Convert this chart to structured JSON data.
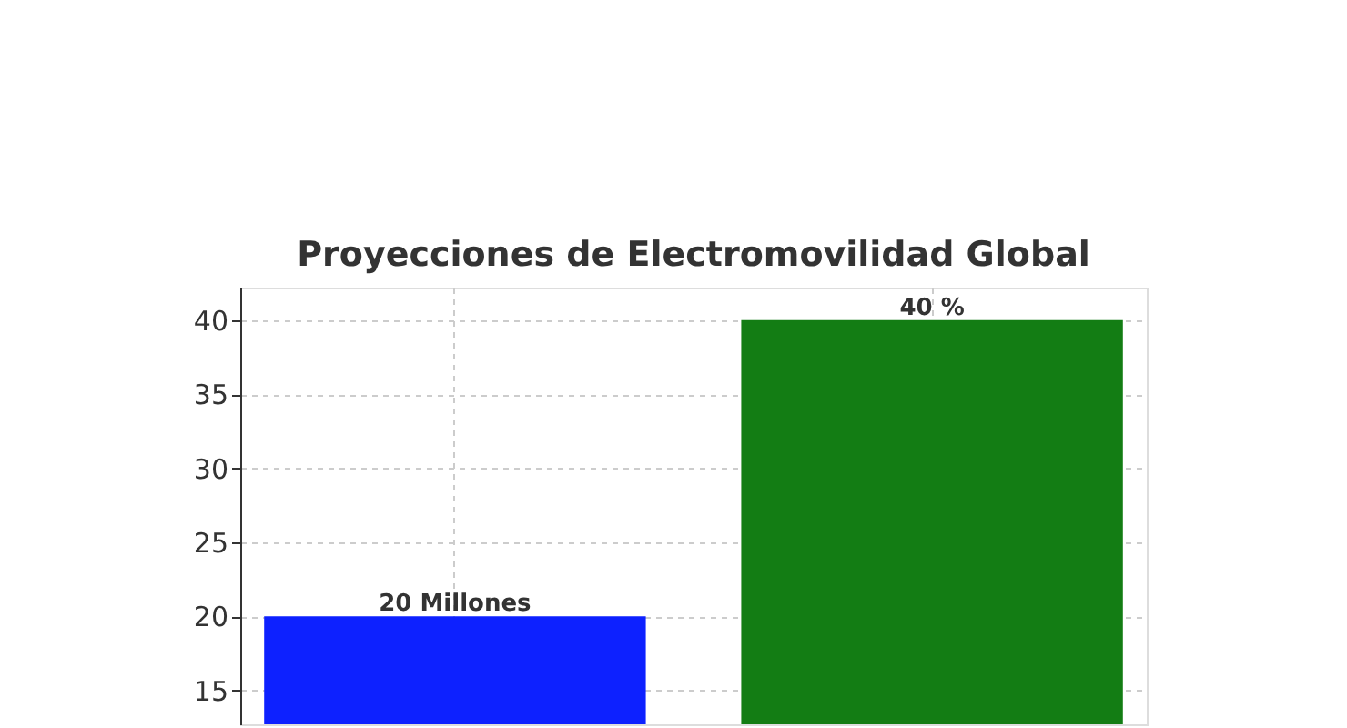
{
  "chart_data": {
    "type": "bar",
    "title": "Proyecciones de Electromovilidad Global",
    "categories": [
      null,
      null
    ],
    "values": [
      20,
      40
    ],
    "colors": [
      "#0d21ff",
      "#137d14"
    ],
    "value_labels": [
      "20 Millones",
      "40 %"
    ],
    "ylim": [
      12.7,
      42.2
    ],
    "yticks": [
      15,
      20,
      25,
      30,
      35,
      40
    ],
    "grid": true,
    "tick_labels": "y"
  }
}
